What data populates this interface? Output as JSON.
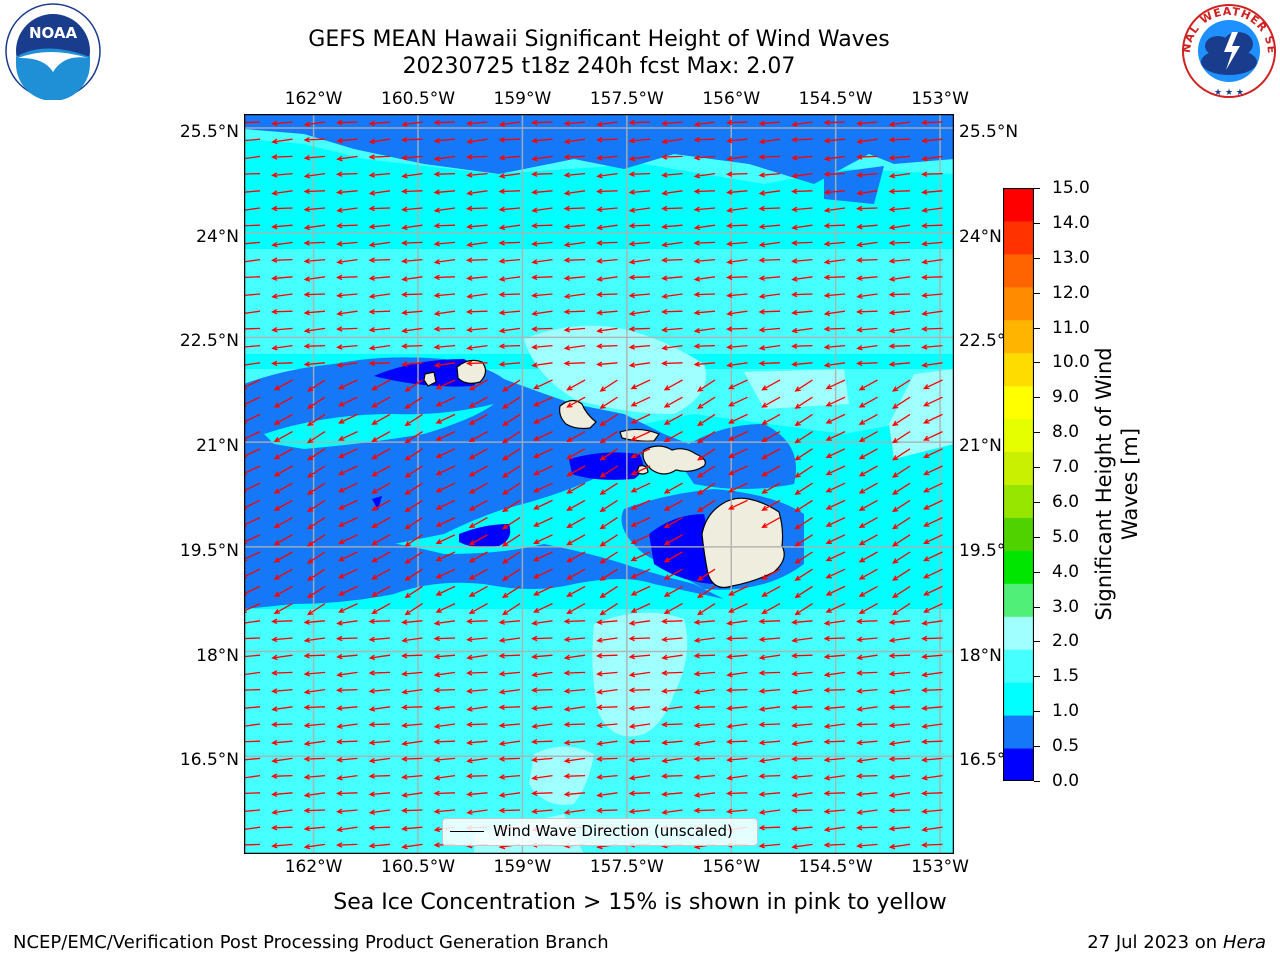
{
  "header": {
    "title_line1": "GEFS MEAN Hawaii Significant Height of Wind Waves",
    "title_line2": "20230725 t18z 240h fcst   Max: 2.07",
    "left_logo_name": "noaa-logo",
    "left_logo_text": "NOAA",
    "right_logo_name": "national-weather-service-logo",
    "right_logo_text": "NATIONAL WEATHER SERVICE"
  },
  "map": {
    "lon_ticks": [
      "162°W",
      "160.5°W",
      "159°W",
      "157.5°W",
      "156°W",
      "154.5°W",
      "153°W"
    ],
    "lat_ticks": [
      "25.5°N",
      "24°N",
      "22.5°N",
      "21°N",
      "19.5°N",
      "18°N",
      "16.5°N"
    ],
    "lon_range": [
      -163.0,
      -152.8
    ],
    "lat_range": [
      15.1,
      25.7
    ],
    "arrow_color": "#ff0000",
    "land_color": "#efedde",
    "legend_label": "Wind Wave Direction (unscaled)"
  },
  "colorbar": {
    "title": "Significant Height of Wind Waves [m]",
    "labels": [
      "15.0",
      "14.0",
      "13.0",
      "12.0",
      "11.0",
      "10.0",
      "9.0",
      "8.0",
      "7.0",
      "6.0",
      "5.0",
      "4.0",
      "3.0",
      "2.0",
      "1.5",
      "1.0",
      "0.5",
      "0.0"
    ],
    "colors": [
      "#0000ff",
      "#1478f8",
      "#00ffff",
      "#46ffff",
      "#a0ffff",
      "#50f078",
      "#00e600",
      "#50d200",
      "#96e600",
      "#c8f000",
      "#e6ff00",
      "#ffff00",
      "#ffdc00",
      "#ffb400",
      "#ff8c00",
      "#ff6400",
      "#ff3200",
      "#ff0000"
    ]
  },
  "subtitle": "Sea Ice Concentration > 15% is shown in pink to yellow",
  "footer": {
    "left": "NCEP/EMC/Verification Post Processing Product Generation Branch",
    "right_prefix": "27 Jul 2023 on ",
    "right_host": "Hera"
  }
}
